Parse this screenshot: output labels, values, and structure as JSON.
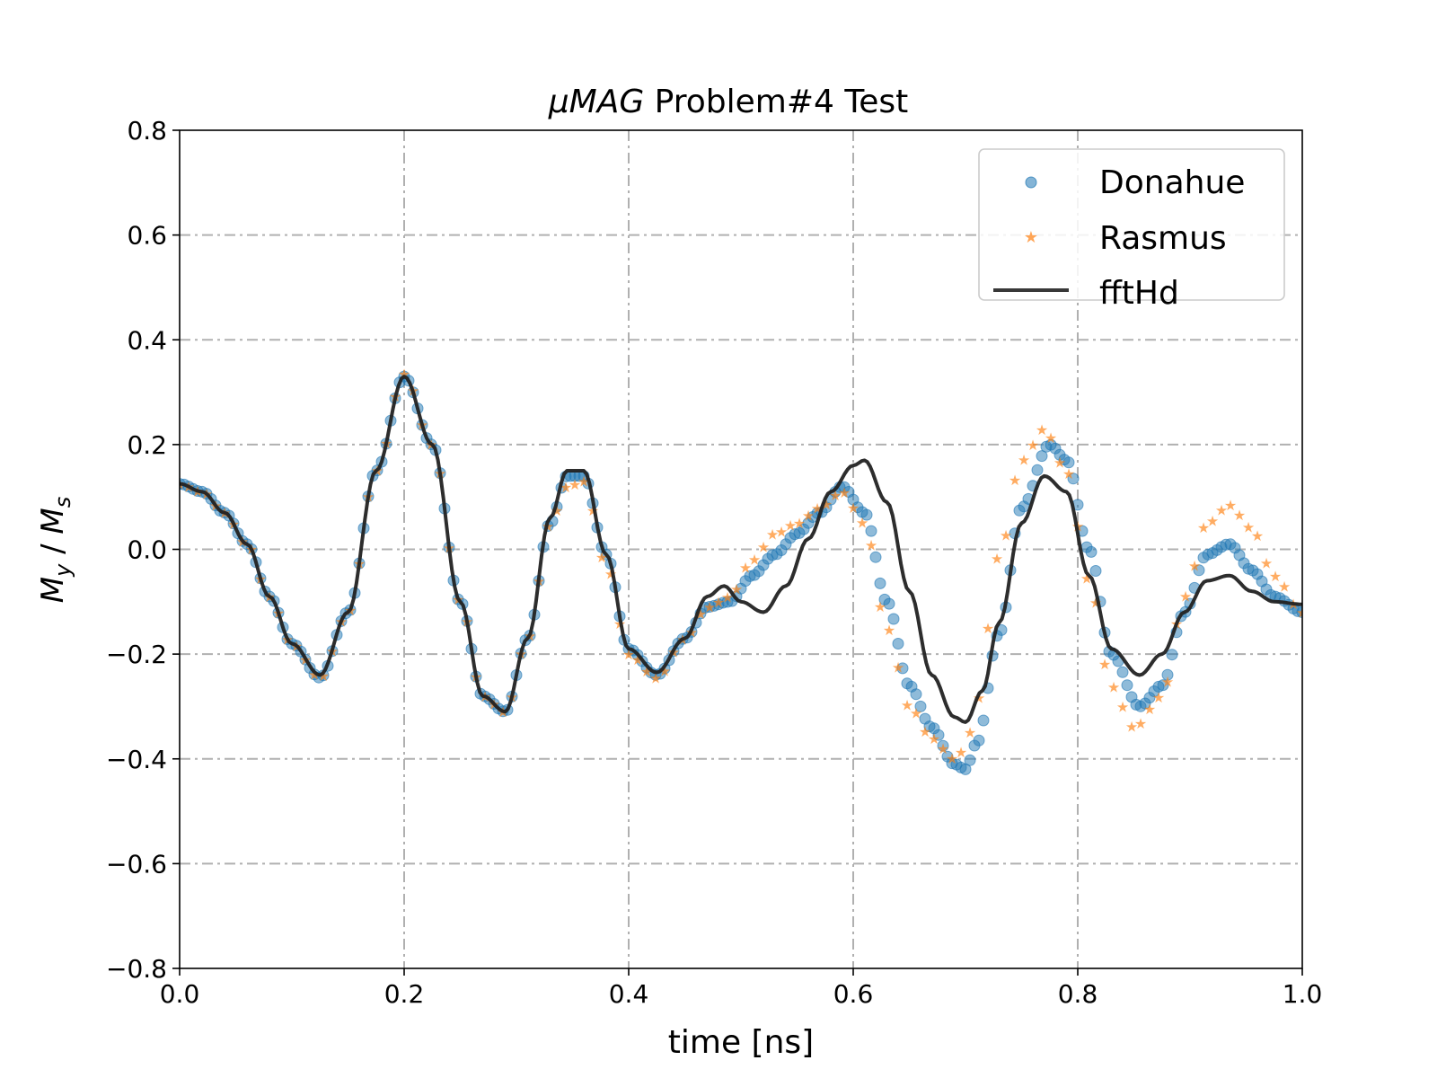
{
  "chart_data": {
    "type": "scatter",
    "title": {
      "prefix": "μMAG",
      "rest": " Problem#4 Test"
    },
    "xlabel": "time [ns]",
    "ylabel": {
      "M1": "M",
      "sub1": "y",
      "sep": " / ",
      "M2": "M",
      "sub2": "s"
    },
    "xlim": [
      0.0,
      1.0
    ],
    "ylim": [
      -0.8,
      0.8
    ],
    "xticks": [
      "0.0",
      "0.2",
      "0.4",
      "0.6",
      "0.8",
      "1.0"
    ],
    "yticks": [
      "−0.8",
      "−0.6",
      "−0.4",
      "−0.2",
      "0.0",
      "0.2",
      "0.4",
      "0.6",
      "0.8"
    ],
    "grid": true,
    "legend_position": "top-right",
    "colors": {
      "Donahue": "#1f77b4",
      "Rasmus": "#ff7f0e",
      "fftHd": "#222222",
      "grid": "#b0b0b0"
    },
    "series": [
      {
        "name": "Donahue",
        "style": "circle-markers",
        "x": [
          0.0,
          0.02,
          0.04,
          0.06,
          0.08,
          0.1,
          0.125,
          0.15,
          0.175,
          0.2,
          0.225,
          0.25,
          0.27,
          0.29,
          0.31,
          0.33,
          0.345,
          0.36,
          0.38,
          0.4,
          0.425,
          0.45,
          0.47,
          0.49,
          0.51,
          0.53,
          0.55,
          0.57,
          0.59,
          0.61,
          0.63,
          0.65,
          0.67,
          0.69,
          0.7,
          0.71,
          0.73,
          0.75,
          0.775,
          0.79,
          0.81,
          0.83,
          0.855,
          0.875,
          0.895,
          0.915,
          0.935,
          0.955,
          0.975,
          1.0
        ],
        "y": [
          0.125,
          0.11,
          0.07,
          0.01,
          -0.09,
          -0.18,
          -0.245,
          -0.12,
          0.15,
          0.33,
          0.2,
          -0.1,
          -0.28,
          -0.31,
          -0.17,
          0.05,
          0.14,
          0.14,
          -0.01,
          -0.19,
          -0.24,
          -0.17,
          -0.11,
          -0.1,
          -0.05,
          -0.01,
          0.03,
          0.07,
          0.12,
          0.07,
          -0.1,
          -0.26,
          -0.34,
          -0.41,
          -0.42,
          -0.37,
          -0.16,
          0.08,
          0.2,
          0.17,
          0.0,
          -0.2,
          -0.3,
          -0.26,
          -0.12,
          -0.01,
          0.01,
          -0.04,
          -0.09,
          -0.12
        ]
      },
      {
        "name": "Rasmus",
        "style": "star-markers",
        "x": [
          0.0,
          0.02,
          0.04,
          0.06,
          0.08,
          0.1,
          0.125,
          0.15,
          0.175,
          0.2,
          0.225,
          0.25,
          0.27,
          0.29,
          0.31,
          0.33,
          0.345,
          0.36,
          0.38,
          0.4,
          0.425,
          0.45,
          0.47,
          0.49,
          0.51,
          0.53,
          0.55,
          0.57,
          0.59,
          0.61,
          0.63,
          0.65,
          0.67,
          0.69,
          0.7,
          0.71,
          0.73,
          0.75,
          0.77,
          0.79,
          0.81,
          0.83,
          0.85,
          0.875,
          0.895,
          0.915,
          0.935,
          0.955,
          0.975,
          1.0
        ],
        "y": [
          0.125,
          0.11,
          0.07,
          0.01,
          -0.09,
          -0.18,
          -0.245,
          -0.12,
          0.15,
          0.335,
          0.2,
          -0.1,
          -0.28,
          -0.31,
          -0.17,
          0.05,
          0.12,
          0.13,
          -0.03,
          -0.2,
          -0.245,
          -0.17,
          -0.11,
          -0.09,
          -0.02,
          0.03,
          0.05,
          0.08,
          0.11,
          0.05,
          -0.15,
          -0.3,
          -0.36,
          -0.4,
          -0.38,
          -0.29,
          -0.01,
          0.17,
          0.23,
          0.15,
          -0.06,
          -0.26,
          -0.34,
          -0.28,
          -0.09,
          0.05,
          0.085,
          0.04,
          -0.05,
          -0.12
        ]
      },
      {
        "name": "fftHd",
        "style": "line",
        "x": [
          0.0,
          0.02,
          0.04,
          0.06,
          0.08,
          0.1,
          0.125,
          0.15,
          0.175,
          0.2,
          0.225,
          0.25,
          0.27,
          0.29,
          0.31,
          0.33,
          0.345,
          0.36,
          0.38,
          0.4,
          0.425,
          0.45,
          0.47,
          0.485,
          0.5,
          0.52,
          0.54,
          0.56,
          0.58,
          0.6,
          0.61,
          0.63,
          0.65,
          0.67,
          0.69,
          0.7,
          0.715,
          0.73,
          0.75,
          0.77,
          0.79,
          0.81,
          0.83,
          0.855,
          0.875,
          0.895,
          0.915,
          0.935,
          0.955,
          0.975,
          1.0
        ],
        "y": [
          0.125,
          0.11,
          0.07,
          0.01,
          -0.09,
          -0.18,
          -0.24,
          -0.12,
          0.15,
          0.33,
          0.2,
          -0.1,
          -0.28,
          -0.31,
          -0.17,
          0.06,
          0.15,
          0.15,
          -0.01,
          -0.19,
          -0.235,
          -0.17,
          -0.09,
          -0.07,
          -0.1,
          -0.12,
          -0.07,
          0.02,
          0.11,
          0.16,
          0.17,
          0.09,
          -0.08,
          -0.24,
          -0.32,
          -0.33,
          -0.27,
          -0.14,
          0.05,
          0.14,
          0.11,
          -0.05,
          -0.19,
          -0.24,
          -0.2,
          -0.12,
          -0.06,
          -0.05,
          -0.08,
          -0.1,
          -0.105
        ]
      }
    ]
  }
}
